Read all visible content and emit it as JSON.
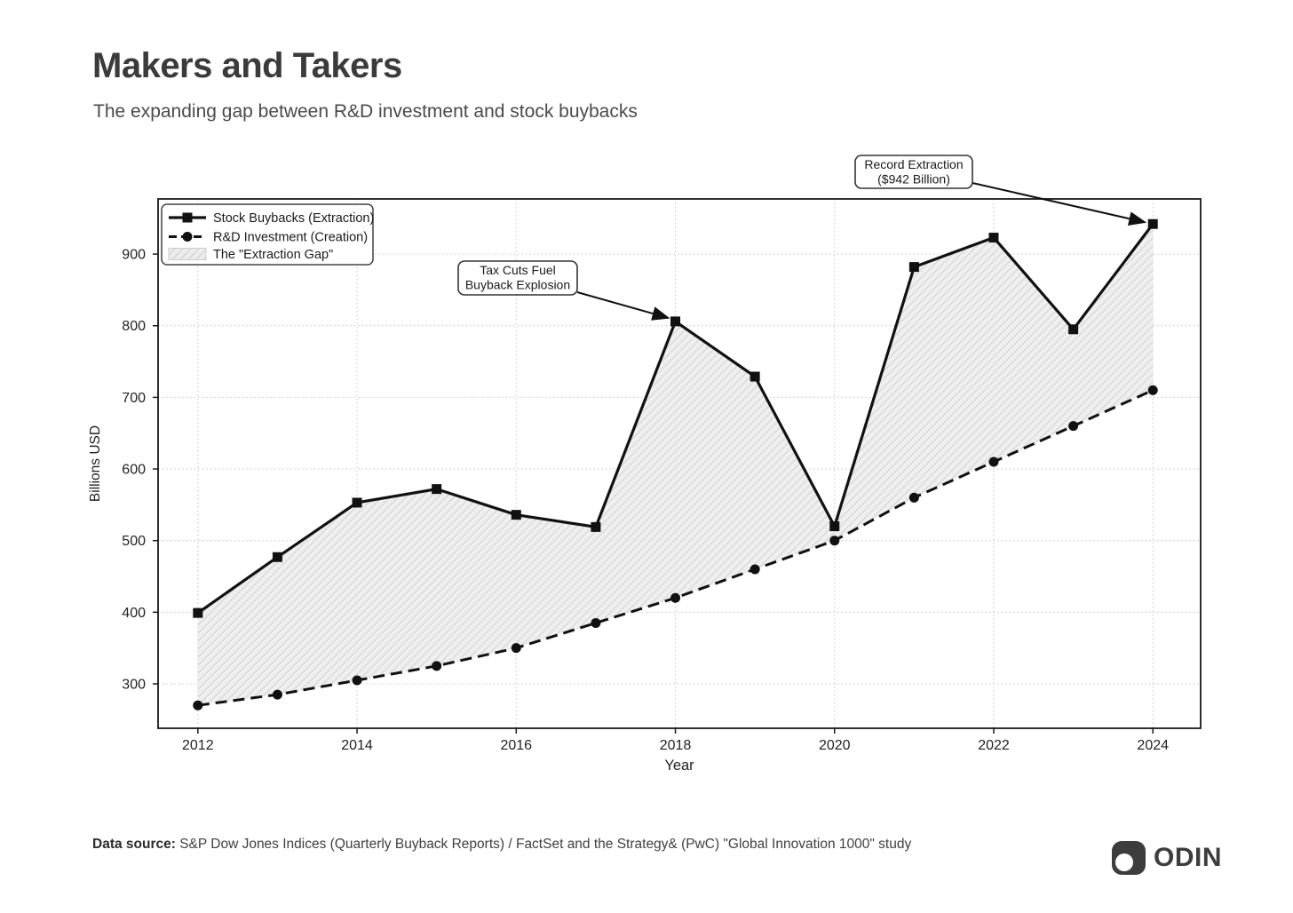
{
  "header": {
    "title": "Makers and Takers",
    "subtitle": "The expanding gap between R&D investment and stock buybacks"
  },
  "chart_data": {
    "type": "line",
    "x": [
      2012,
      2013,
      2014,
      2015,
      2016,
      2017,
      2018,
      2019,
      2020,
      2021,
      2022,
      2023,
      2024
    ],
    "series": [
      {
        "name": "Stock Buybacks (Extraction)",
        "line_style": "solid",
        "marker": "square",
        "values": [
          399,
          477,
          553,
          572,
          536,
          519,
          806,
          729,
          520,
          882,
          923,
          795,
          942
        ]
      },
      {
        "name": "R&D Investment (Creation)",
        "line_style": "dashed",
        "marker": "circle",
        "values": [
          270,
          285,
          305,
          325,
          350,
          385,
          420,
          460,
          500,
          560,
          610,
          660,
          710
        ]
      }
    ],
    "band": {
      "label": "The \"Extraction Gap\"",
      "between": [
        "Stock Buybacks (Extraction)",
        "R&D Investment (Creation)"
      ],
      "hatch": "diagonal"
    },
    "xlabel": "Year",
    "ylabel": "Billions USD",
    "xticks": [
      2012,
      2014,
      2016,
      2018,
      2020,
      2022,
      2024
    ],
    "yticks": [
      300,
      400,
      500,
      600,
      700,
      800,
      900
    ],
    "xlim": [
      2011.5,
      2024.6
    ],
    "ylim": [
      238,
      977
    ],
    "grid": "dotted",
    "legend_position": "upper left",
    "annotations": [
      {
        "lines": [
          "Tax Cuts Fuel",
          "Buyback Explosion"
        ],
        "target_x": 2018,
        "target_y": 806
      },
      {
        "lines": [
          "Record Extraction",
          "($942 Billion)"
        ],
        "target_x": 2024,
        "target_y": 942
      }
    ]
  },
  "footer": {
    "source_label": "Data source:",
    "source_text": " S&P Dow Jones Indices (Quarterly Buyback Reports) / FactSet and the Strategy& (PwC) \"Global Innovation 1000\" study"
  },
  "logo": {
    "text": "ODIN"
  },
  "colors": {
    "line": "#111111",
    "frame": "#1a1a1a",
    "grid": "#c4c4c4",
    "band_fill": "#ededed",
    "hatch": "#d2d2d2",
    "title_text": "#3b3b3b",
    "logo_dark": "#3d3d3d",
    "annotation_border": "#333333"
  }
}
